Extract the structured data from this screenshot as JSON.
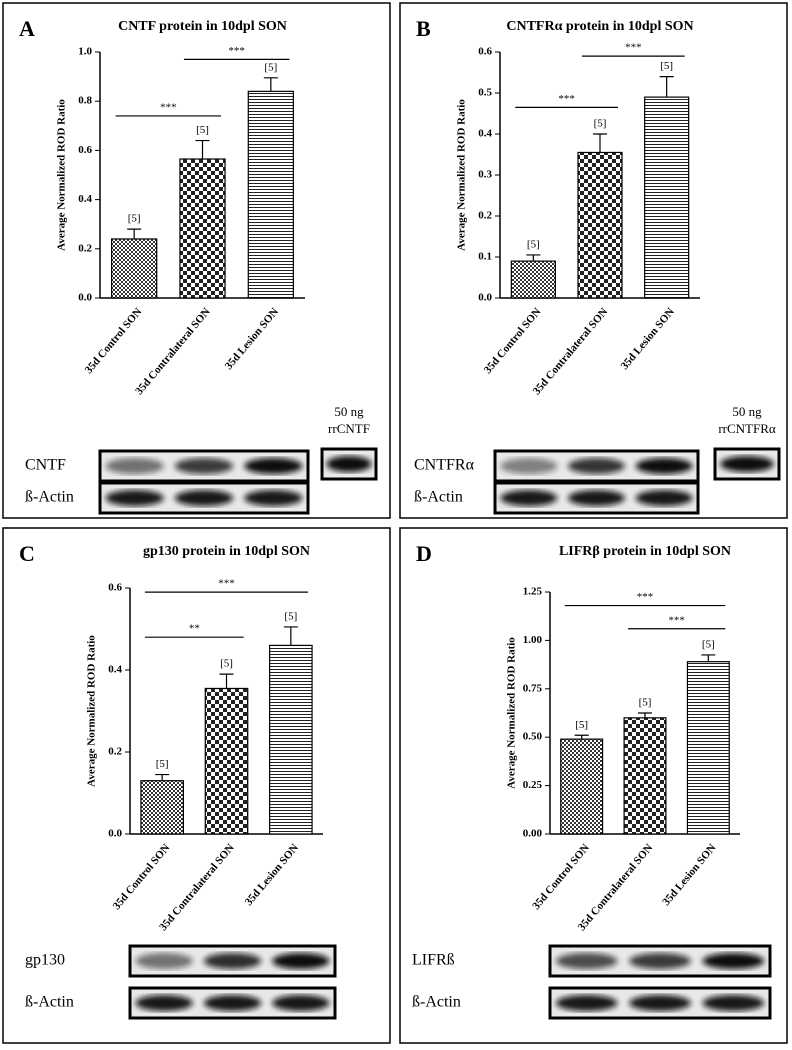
{
  "chart_data": [
    {
      "type": "bar",
      "panel": "A",
      "title": "CNTF protein in 10dpl SON",
      "y_label": "Average Normalized ROD Ratio",
      "categories": [
        "35d Control SON",
        "35d Contralateral SON",
        "35d Lesion SON"
      ],
      "values": [
        0.24,
        0.565,
        0.84
      ],
      "errors": [
        0.04,
        0.075,
        0.055
      ],
      "n_labels": [
        "[5]",
        "[5]",
        "[5]"
      ],
      "ylim": [
        0,
        1.0
      ],
      "yticks": [
        {
          "value": 0,
          "label": "0.0"
        },
        0.2,
        0.4,
        0.6,
        0.8,
        {
          "value": 1.0,
          "label": "1.0"
        }
      ],
      "comparisons": [
        {
          "label": "***",
          "categories": [
            0,
            1
          ],
          "y": 0.74
        },
        {
          "label": "***",
          "categories": [
            1,
            2
          ],
          "y": 0.97
        }
      ],
      "blot_labels": [
        "CNTF",
        "ß-Actin"
      ],
      "standard_label": [
        "50 ng",
        "rrCNTF"
      ]
    },
    {
      "type": "bar",
      "panel": "B",
      "title": "CNTFRα protein in 10dpl SON",
      "y_label": "Average Normalized ROD Ratio",
      "categories": [
        "35d Control SON",
        "35d Contralateral SON",
        "35d Lesion SON"
      ],
      "values": [
        0.09,
        0.355,
        0.49
      ],
      "errors": [
        0.015,
        0.045,
        0.05
      ],
      "n_labels": [
        "[5]",
        "[5]",
        "[5]"
      ],
      "ylim": [
        0,
        0.6
      ],
      "yticks": [
        {
          "value": 0,
          "label": "0.0"
        },
        0.1,
        0.2,
        0.3,
        0.4,
        0.5,
        0.6
      ],
      "comparisons": [
        {
          "label": "***",
          "categories": [
            0,
            1
          ],
          "y": 0.465
        },
        {
          "label": "***",
          "categories": [
            1,
            2
          ],
          "y": 0.59
        }
      ],
      "blot_labels": [
        "CNTFRα",
        "ß-Actin"
      ],
      "standard_label": [
        "50 ng",
        "rrCNTFRα"
      ]
    },
    {
      "type": "bar",
      "panel": "C",
      "title": "gp130 protein in 10dpl SON",
      "y_label": "Average Normalized ROD Ratio",
      "categories": [
        "35d Control SON",
        "35d Contralateral SON",
        "35d Lesion SON"
      ],
      "values": [
        0.13,
        0.355,
        0.46
      ],
      "errors": [
        0.015,
        0.035,
        0.045
      ],
      "n_labels": [
        "[5]",
        "[5]",
        "[5]"
      ],
      "ylim": [
        0,
        0.6
      ],
      "yticks": [
        {
          "value": 0,
          "label": "0.0"
        },
        0.2,
        0.4,
        0.6
      ],
      "comparisons": [
        {
          "label": "**",
          "categories": [
            0,
            1
          ],
          "y": 0.48
        },
        {
          "label": "***",
          "categories": [
            0,
            2
          ],
          "y": 0.59
        }
      ],
      "blot_labels": [
        "gp130",
        "ß-Actin"
      ]
    },
    {
      "type": "bar",
      "panel": "D",
      "title": "LIFRβ protein in 10dpl SON",
      "y_label": "Average Normalized ROD Ratio",
      "categories": [
        "35d Control SON",
        "35d Contralateral SON",
        "35d Lesion SON"
      ],
      "values": [
        0.49,
        0.6,
        0.89
      ],
      "errors": [
        0.02,
        0.025,
        0.035
      ],
      "n_labels": [
        "[5]",
        "[5]",
        "[5]"
      ],
      "ylim": [
        0,
        1.25
      ],
      "yticks": [
        {
          "value": 0,
          "label": "0.00"
        },
        0.25,
        {
          "value": 0.5,
          "label": "0.50"
        },
        0.75,
        {
          "value": 1.0,
          "label": "1.00"
        },
        1.25
      ],
      "comparisons": [
        {
          "label": "***",
          "categories": [
            0,
            2
          ],
          "y": 1.18
        },
        {
          "label": "***",
          "categories": [
            1,
            2
          ],
          "y": 1.06
        }
      ],
      "blot_labels": [
        "LIFRß",
        "ß-Actin"
      ]
    }
  ]
}
